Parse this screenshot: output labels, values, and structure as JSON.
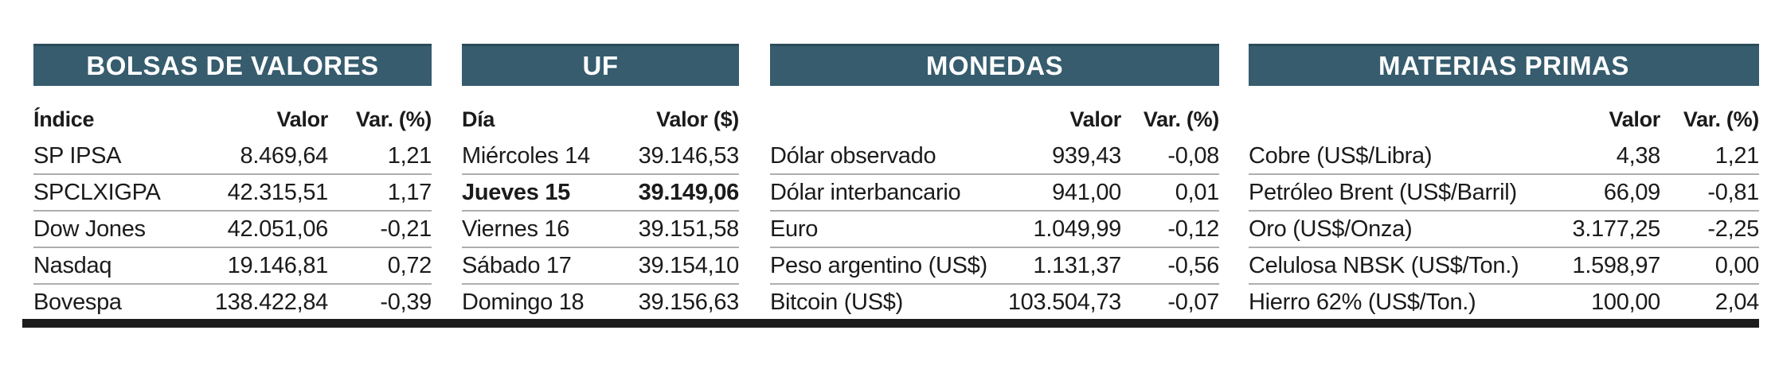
{
  "chart_data": [
    {
      "type": "table",
      "title": "BOLSAS DE VALORES",
      "columns": [
        "Índice",
        "Valor",
        "Var. (%)"
      ],
      "rows": [
        [
          "SP IPSA",
          "8.469,64",
          "1,21"
        ],
        [
          "SPCLXIGPA",
          "42.315,51",
          "1,17"
        ],
        [
          "Dow Jones",
          "42.051,06",
          "-0,21"
        ],
        [
          "Nasdaq",
          "19.146,81",
          "0,72"
        ],
        [
          "Bovespa",
          "138.422,84",
          "-0,39"
        ]
      ],
      "bold_row_index": null
    },
    {
      "type": "table",
      "title": "UF",
      "columns": [
        "Día",
        "Valor ($)"
      ],
      "rows": [
        [
          "Miércoles 14",
          "39.146,53"
        ],
        [
          "Jueves 15",
          "39.149,06"
        ],
        [
          "Viernes 16",
          "39.151,58"
        ],
        [
          "Sábado 17",
          "39.154,10"
        ],
        [
          "Domingo 18",
          "39.156,63"
        ]
      ],
      "bold_row_index": 1
    },
    {
      "type": "table",
      "title": "MONEDAS",
      "columns": [
        "",
        "Valor",
        "Var. (%)"
      ],
      "rows": [
        [
          "Dólar observado",
          "939,43",
          "-0,08"
        ],
        [
          "Dólar interbancario",
          "941,00",
          "0,01"
        ],
        [
          "Euro",
          "1.049,99",
          "-0,12"
        ],
        [
          "Peso argentino (US$)",
          "1.131,37",
          "-0,56"
        ],
        [
          "Bitcoin (US$)",
          "103.504,73",
          "-0,07"
        ]
      ],
      "bold_row_index": null
    },
    {
      "type": "table",
      "title": "MATERIAS PRIMAS",
      "columns": [
        "",
        "Valor",
        "Var. (%)"
      ],
      "rows": [
        [
          "Cobre (US$/Libra)",
          "4,38",
          "1,21"
        ],
        [
          "Petróleo Brent (US$/Barril)",
          "66,09",
          "-0,81"
        ],
        [
          "Oro (US$/Onza)",
          "3.177,25",
          "-2,25"
        ],
        [
          "Celulosa NBSK (US$/Ton.)",
          "1.598,97",
          "0,00"
        ],
        [
          "Hierro 62% (US$/Ton.)",
          "100,00",
          "2,04"
        ]
      ],
      "bold_row_index": null
    }
  ],
  "colors": {
    "section_header_bg": "#365c6e",
    "section_header_top_edge": "#2b4b59",
    "section_header_text": "#ffffff",
    "row_divider": "#aeaeae",
    "bottom_rule": "#1c1c1c",
    "text": "#1b1b1b"
  }
}
